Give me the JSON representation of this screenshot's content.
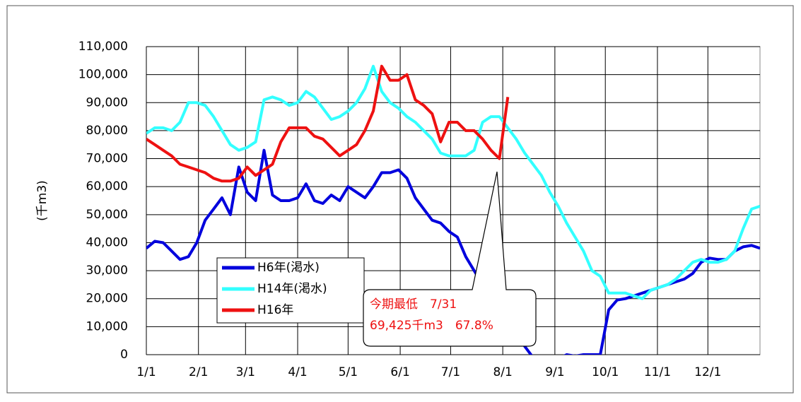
{
  "chart_data": {
    "type": "line",
    "y_label": "(千m3)",
    "xlim": [
      1,
      366
    ],
    "xticks": [
      {
        "value": 1,
        "label": "1/1"
      },
      {
        "value": 32,
        "label": "2/1"
      },
      {
        "value": 60,
        "label": "3/1"
      },
      {
        "value": 91,
        "label": "4/1"
      },
      {
        "value": 121,
        "label": "5/1"
      },
      {
        "value": 152,
        "label": "6/1"
      },
      {
        "value": 182,
        "label": "7/1"
      },
      {
        "value": 213,
        "label": "8/1"
      },
      {
        "value": 244,
        "label": "9/1"
      },
      {
        "value": 274,
        "label": "10/1"
      },
      {
        "value": 305,
        "label": "11/1"
      },
      {
        "value": 335,
        "label": "12/1"
      }
    ],
    "ylim": [
      0,
      110000
    ],
    "yticks": [
      0,
      {
        "value": 10000,
        "label": "10,000"
      },
      {
        "value": 20000,
        "label": "20,000"
      },
      {
        "value": 30000,
        "label": "30,000"
      },
      {
        "value": 40000,
        "label": "40,000"
      },
      {
        "value": 50000,
        "label": "50,000"
      },
      {
        "value": 60000,
        "label": "60,000"
      },
      {
        "value": 70000,
        "label": "70,000"
      },
      {
        "value": 80000,
        "label": "80,000"
      },
      {
        "value": 90000,
        "label": "90,000"
      },
      {
        "value": 100000,
        "label": "100,000"
      },
      {
        "value": 110000,
        "label": "110,000"
      }
    ],
    "grid": true,
    "x": [
      1,
      6,
      11,
      16,
      21,
      26,
      31,
      36,
      41,
      46,
      51,
      56,
      61,
      66,
      71,
      76,
      81,
      86,
      91,
      96,
      101,
      106,
      111,
      116,
      121,
      126,
      131,
      136,
      141,
      146,
      151,
      156,
      161,
      166,
      171,
      176,
      181,
      186,
      191,
      196,
      201,
      206,
      211,
      216,
      221,
      226,
      231,
      236,
      241,
      246,
      251,
      256,
      261,
      266,
      271,
      276,
      281,
      286,
      291,
      296,
      301,
      306,
      311,
      316,
      321,
      326,
      331,
      336,
      341,
      346,
      351,
      356,
      361,
      366
    ],
    "series": [
      {
        "name": "H6年(渇水)",
        "color": "#0000dd",
        "values": [
          38000,
          40500,
          40000,
          37000,
          34000,
          35000,
          40000,
          48000,
          52000,
          56000,
          50000,
          67000,
          58000,
          55000,
          73000,
          57000,
          55000,
          55000,
          56000,
          61000,
          55000,
          54000,
          57000,
          55000,
          60000,
          58000,
          56000,
          60000,
          65000,
          65000,
          66000,
          63000,
          56000,
          52000,
          48000,
          47000,
          44000,
          42000,
          35000,
          30000,
          25000,
          20000,
          15000,
          11000,
          9000,
          3000,
          -1000,
          -2000,
          -2000,
          -1500,
          0,
          -500,
          0,
          0,
          0,
          16000,
          19500,
          20000,
          21000,
          22000,
          23000,
          24000,
          25000,
          26000,
          27000,
          29000,
          33000,
          34500,
          34000,
          34000,
          37000,
          38500,
          39000,
          38000
        ]
      },
      {
        "name": "H14年(渇水)",
        "color": "#33ffff",
        "values": [
          79000,
          81000,
          81000,
          80000,
          83000,
          90000,
          90000,
          89000,
          85000,
          80000,
          75000,
          73000,
          74000,
          76000,
          91000,
          92000,
          91000,
          89000,
          90000,
          94000,
          92000,
          88000,
          84000,
          85000,
          87000,
          90000,
          95000,
          103000,
          94000,
          90000,
          88000,
          85000,
          83000,
          80000,
          77000,
          72000,
          71000,
          71000,
          71000,
          73000,
          83000,
          85000,
          85000,
          81000,
          77000,
          72000,
          68000,
          64000,
          58000,
          53000,
          47000,
          42000,
          37000,
          30000,
          28000,
          22000,
          22000,
          22000,
          21000,
          20000,
          23000,
          24000,
          25000,
          27000,
          30000,
          33000,
          34000,
          33000,
          33000,
          34000,
          37000,
          45000,
          52000,
          53000
        ]
      },
      {
        "name": "H16年",
        "color": "#ee1111",
        "values": [
          77000,
          75000,
          73000,
          71000,
          68000,
          67000,
          66000,
          65000,
          63000,
          62000,
          62000,
          63000,
          67000,
          64000,
          66000,
          68000,
          76000,
          81000,
          81000,
          81000,
          78000,
          77000,
          74000,
          71000,
          73000,
          75000,
          80000,
          87000,
          103000,
          98000,
          98000,
          100000,
          91000,
          89000,
          86000,
          76000,
          83000,
          83000,
          80000,
          80000,
          77000,
          73000,
          70000,
          92000,
          null,
          null,
          null,
          null,
          null,
          null,
          null,
          null,
          null,
          null,
          null,
          null,
          null,
          null,
          null,
          null,
          null,
          null,
          null,
          null,
          null,
          null,
          null,
          null,
          null,
          null,
          null,
          null,
          null,
          null
        ]
      }
    ],
    "annotation": {
      "lines": [
        "今期最低　7/31",
        "69,425千m3　67.8%"
      ],
      "color": "#ee1111"
    }
  }
}
